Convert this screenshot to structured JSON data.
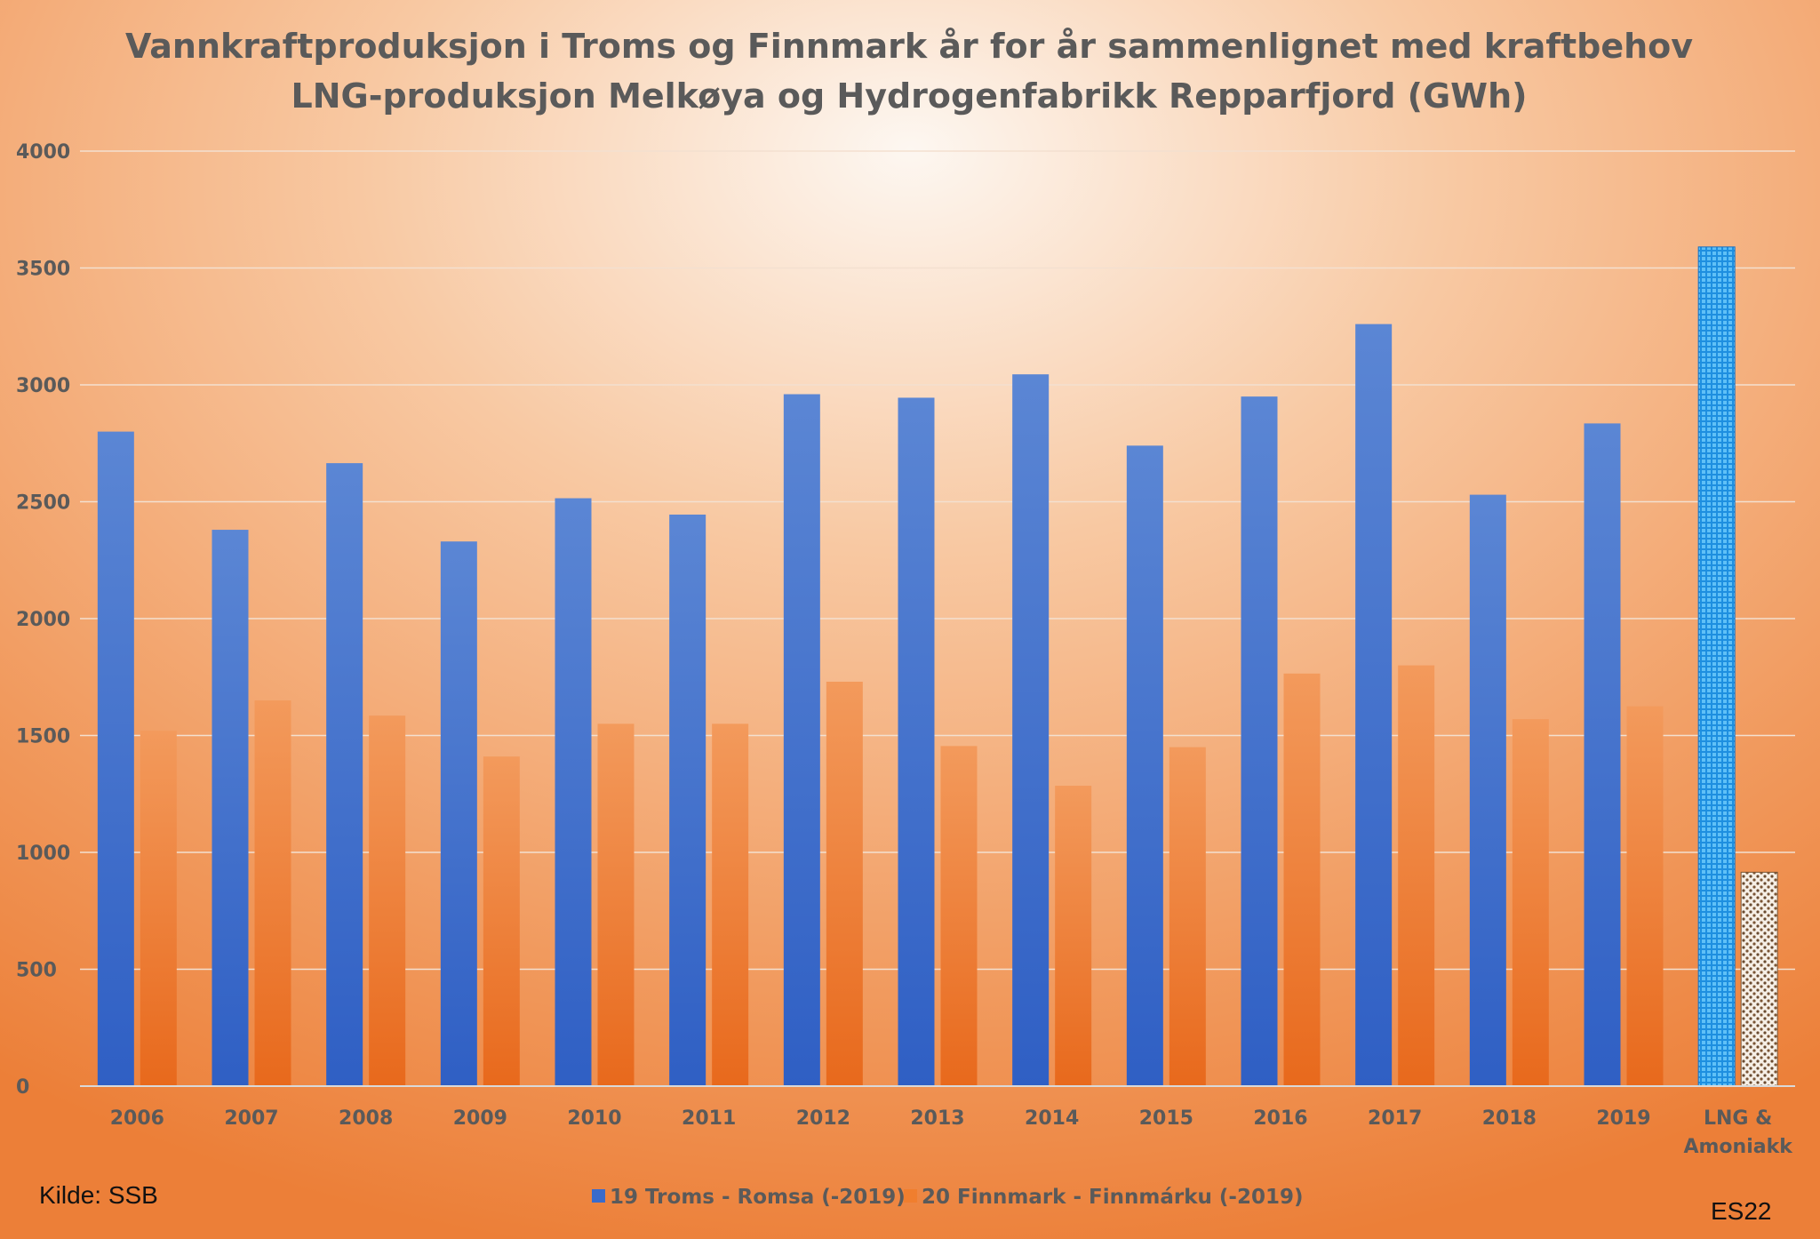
{
  "chart_data": {
    "type": "bar",
    "title": "Vannkraftproduksjon i Troms og Finnmark år for år sammenlignet med kraftbehov",
    "subtitle": "LNG-produksjon Melkøya og Hydrogenfabrikk Repparfjord (GWh)",
    "categories": [
      "2006",
      "2007",
      "2008",
      "2009",
      "2010",
      "2011",
      "2012",
      "2013",
      "2014",
      "2015",
      "2016",
      "2017",
      "2018",
      "2019",
      "LNG & Amoniakk"
    ],
    "category_lines": [
      [
        "2006"
      ],
      [
        "2007"
      ],
      [
        "2008"
      ],
      [
        "2009"
      ],
      [
        "2010"
      ],
      [
        "2011"
      ],
      [
        "2012"
      ],
      [
        "2013"
      ],
      [
        "2014"
      ],
      [
        "2015"
      ],
      [
        "2016"
      ],
      [
        "2017"
      ],
      [
        "2018"
      ],
      [
        "2019"
      ],
      [
        "LNG &",
        "Amoniakk"
      ]
    ],
    "series": [
      {
        "name": "19 Troms - Romsa (-2019)",
        "color": "#3a6bcb",
        "values": [
          2800,
          2380,
          2665,
          2330,
          2515,
          2445,
          2960,
          2945,
          3045,
          2740,
          2950,
          3260,
          2530,
          2835,
          3590
        ]
      },
      {
        "name": "20 Finnmark - Finnmárku (-2019)",
        "color": "#f07e2e",
        "values": [
          1520,
          1650,
          1585,
          1410,
          1550,
          1550,
          1730,
          1455,
          1285,
          1450,
          1765,
          1800,
          1570,
          1625,
          915
        ]
      }
    ],
    "highlight": {
      "category": "LNG & Amoniakk",
      "styles": [
        "blue grid pattern",
        "dotted pattern"
      ]
    },
    "y_ticks": [
      0,
      500,
      1000,
      1500,
      2000,
      2500,
      3000,
      3500,
      4000
    ],
    "ylim": [
      0,
      4000
    ],
    "grid": true,
    "legend": "bottom-center"
  },
  "annotations": {
    "source": "Kilde: SSB",
    "signature": "ES22"
  }
}
